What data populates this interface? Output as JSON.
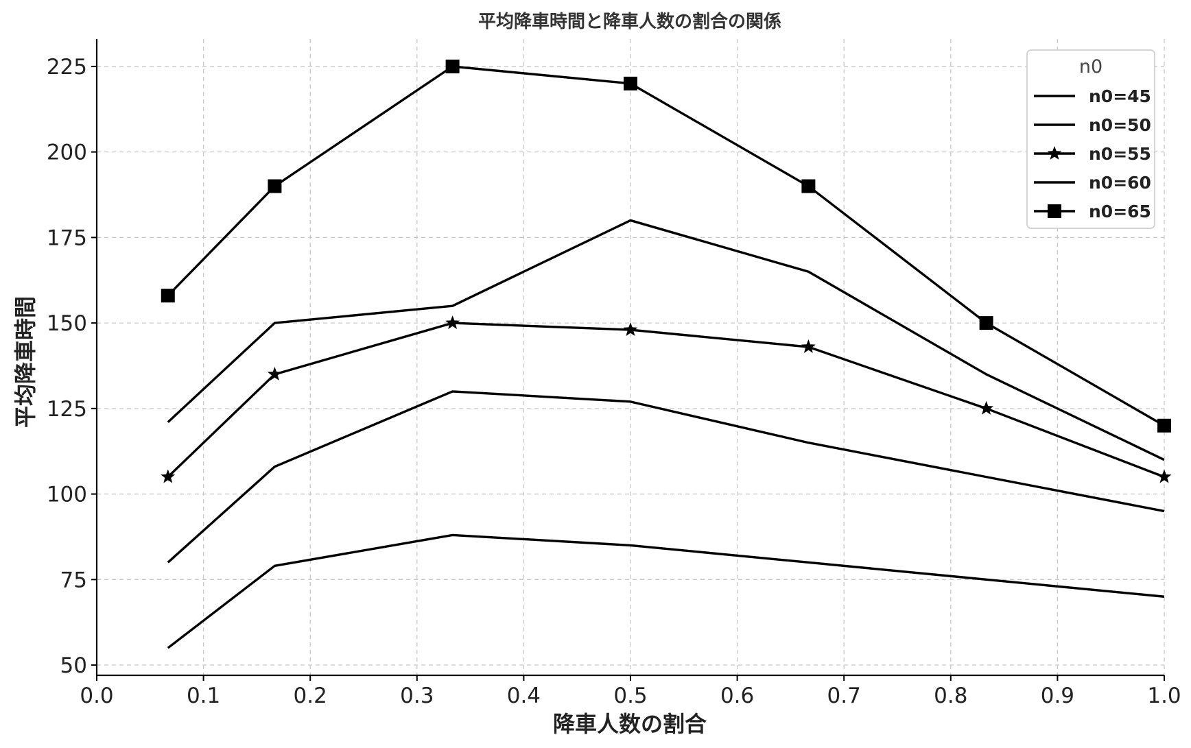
{
  "chart_data": {
    "type": "line",
    "title": "平均降車時間と降車人数の割合の関係",
    "xlabel": "降車人数の割合",
    "ylabel": "平均降車時間",
    "xlim": [
      0.0,
      1.0
    ],
    "ylim": [
      47,
      233
    ],
    "xticks": [
      0.0,
      0.1,
      0.2,
      0.3,
      0.4,
      0.5,
      0.6,
      0.7,
      0.8,
      0.9,
      1.0
    ],
    "xtick_labels": [
      "0.0",
      "0.1",
      "0.2",
      "0.3",
      "0.4",
      "0.5",
      "0.6",
      "0.7",
      "0.8",
      "0.9",
      "1.0"
    ],
    "yticks": [
      50,
      75,
      100,
      125,
      150,
      175,
      200,
      225
    ],
    "ytick_labels": [
      "50",
      "75",
      "100",
      "125",
      "150",
      "175",
      "200",
      "225"
    ],
    "grid": true,
    "legend": {
      "title": "n0",
      "placement": "top-right"
    },
    "x": [
      0.0667,
      0.1667,
      0.3333,
      0.5,
      0.6667,
      0.8333,
      1.0
    ],
    "series": [
      {
        "name": "n0=45",
        "marker": "none",
        "values": [
          55,
          79,
          88,
          85,
          80,
          75,
          70
        ]
      },
      {
        "name": "n0=50",
        "marker": "none",
        "values": [
          80,
          108,
          130,
          127,
          115,
          105,
          95
        ]
      },
      {
        "name": "n0=55",
        "marker": "star",
        "values": [
          105,
          135,
          150,
          148,
          143,
          125,
          105
        ]
      },
      {
        "name": "n0=60",
        "marker": "none",
        "values": [
          121,
          150,
          155,
          180,
          165,
          135,
          110
        ]
      },
      {
        "name": "n0=65",
        "marker": "square",
        "values": [
          158,
          190,
          225,
          220,
          190,
          150,
          120
        ]
      }
    ],
    "color": "#000000"
  }
}
